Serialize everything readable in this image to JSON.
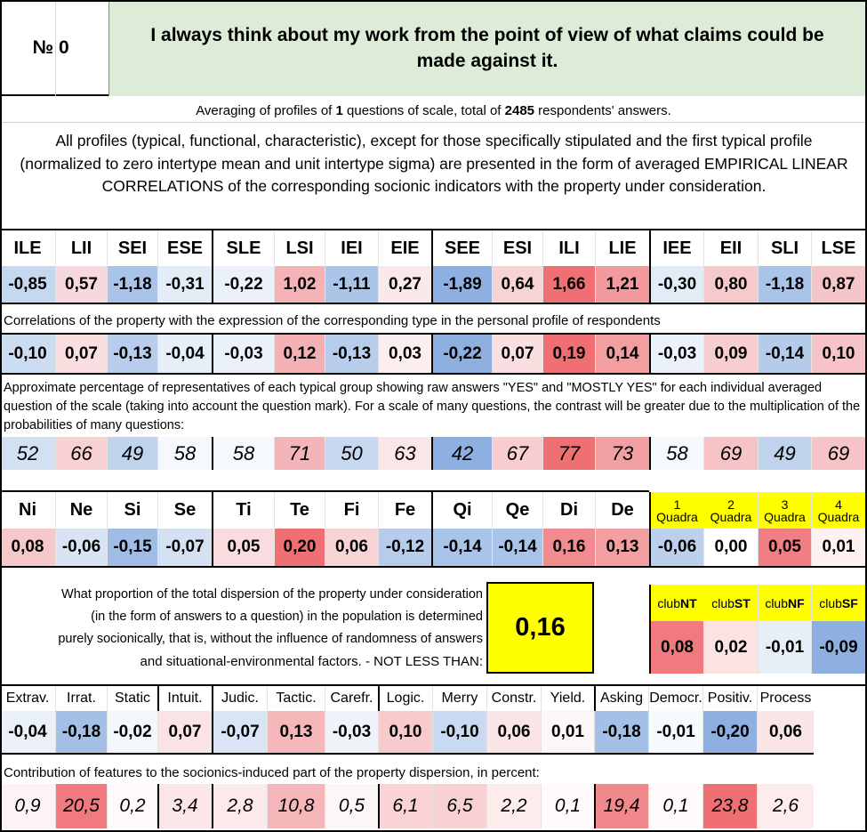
{
  "header": {
    "number_label": "№",
    "number": "0",
    "question": "I always think about my work from the point of view of what claims could be made against it."
  },
  "summary": {
    "pre": "Averaging of profiles of ",
    "questions_count": "1",
    "mid": " questions of scale, total of ",
    "respondents_count": "2485",
    "post": " respondents' answers."
  },
  "description": "All profiles (typical, functional, characteristic), except for those specifically stipulated and the first typical profile (normalized to zero intertype mean and unit intertype sigma) are presented in the form of averaged EMPIRICAL LINEAR CORRELATIONS of the corresponding socionic indicators with the property under consideration.",
  "types": {
    "labels": [
      "ILE",
      "LII",
      "SEI",
      "ESE",
      "SLE",
      "LSI",
      "IEI",
      "EIE",
      "SEE",
      "ESI",
      "ILI",
      "LIE",
      "IEE",
      "EII",
      "SLI",
      "LSE"
    ],
    "values": [
      "-0,85",
      "0,57",
      "-1,18",
      "-0,31",
      "-0,22",
      "1,02",
      "-1,11",
      "0,27",
      "-1,89",
      "0,64",
      "1,66",
      "1,21",
      "-0,30",
      "0,80",
      "-1,18",
      "0,87"
    ],
    "colors": [
      "#c6d8ef",
      "#f8d9db",
      "#a9c4e8",
      "#e4ecf7",
      "#ebf1f9",
      "#f4b3b6",
      "#aac5e8",
      "#fbe9ea",
      "#8eb0e0",
      "#f7d3d5",
      "#ef6f73",
      "#f29a9e",
      "#e3ebf7",
      "#f6c9cb",
      "#a9c4e8",
      "#f6c5c8"
    ]
  },
  "correlations": {
    "caption": "Correlations of the property with the expression of the corresponding type in the personal profile of respondents",
    "values": [
      "-0,10",
      "0,07",
      "-0,13",
      "-0,04",
      "-0,03",
      "0,12",
      "-0,13",
      "0,03",
      "-0,22",
      "0,07",
      "0,19",
      "0,14",
      "-0,03",
      "0,09",
      "-0,14",
      "0,10"
    ],
    "colors": [
      "#ccdcf1",
      "#f9dfe0",
      "#b7cdeb",
      "#e6eef8",
      "#ebf1f9",
      "#f4b1b4",
      "#b8cdeb",
      "#fcedee",
      "#8eb0e0",
      "#f9dfe0",
      "#ef6f73",
      "#f39fa2",
      "#ebf1f9",
      "#f7cdcf",
      "#b4cbea",
      "#f6c3c6"
    ]
  },
  "percentages": {
    "caption": "Approximate percentage of representatives of each typical group showing raw answers \"YES\" and \"MOSTLY YES\" for each individual averaged question of the scale (taking into account the question mark). For a scale of many questions, the contrast will be greater due to the multiplication of the probabilities of many questions:",
    "values": [
      "52",
      "66",
      "49",
      "58",
      "58",
      "71",
      "50",
      "63",
      "42",
      "67",
      "77",
      "73",
      "58",
      "69",
      "49",
      "69"
    ],
    "colors": [
      "#d2e0f2",
      "#f7d1d3",
      "#bfd3ed",
      "#f5f8fc",
      "#f5f8fc",
      "#f4b5b8",
      "#c6d8ef",
      "#fbe6e7",
      "#8eb0e0",
      "#f7cdcf",
      "#ef6f73",
      "#f29fa2",
      "#f5f8fc",
      "#f6c4c7",
      "#bfd3ed",
      "#f6c4c7"
    ]
  },
  "functions": {
    "labels": [
      "Ni",
      "Ne",
      "Si",
      "Se",
      "Ti",
      "Te",
      "Fi",
      "Fe",
      "Qi",
      "Qe",
      "Di",
      "De"
    ],
    "values": [
      "0,08",
      "-0,06",
      "-0,15",
      "-0,07",
      "0,05",
      "0,20",
      "0,06",
      "-0,12",
      "-0,14",
      "-0,14",
      "0,16",
      "0,13"
    ],
    "colors": [
      "#f6c8ca",
      "#d8e4f4",
      "#9fbde5",
      "#d3e1f3",
      "#f9dcdd",
      "#ef6f73",
      "#f8d4d6",
      "#b6ccea",
      "#a9c4e8",
      "#a9c4e8",
      "#f18b8f",
      "#f39ea1"
    ]
  },
  "quadras": {
    "labels": [
      [
        "1",
        "Quadra"
      ],
      [
        "2",
        "Quadra"
      ],
      [
        "3",
        "Quadra"
      ],
      [
        "4",
        "Quadra"
      ]
    ],
    "values": [
      "-0,06",
      "0,00",
      "0,05",
      "0,01"
    ],
    "colors": [
      "#bcd0ec",
      "#ffffff",
      "#f07e82",
      "#fdf1f1"
    ]
  },
  "dispersion": {
    "lines": [
      "What proportion of the total dispersion of the property under consideration",
      "(in the form of answers to a question) in the population is determined",
      "purely socionically, that is, without the influence of randomness of answers",
      "and situational-environmental factors. - NOT LESS THAN:"
    ],
    "value": "0,16",
    "value_color": "#ffff00"
  },
  "clubs": {
    "labels": [
      [
        "club",
        "NT"
      ],
      [
        "club",
        "ST"
      ],
      [
        "club",
        "NF"
      ],
      [
        "club",
        "SF"
      ]
    ],
    "values": [
      "0,08",
      "0,02",
      "-0,01",
      "-0,09"
    ],
    "colors": [
      "#f07a7e",
      "#fbe3e4",
      "#e6eef8",
      "#8eb0e0"
    ]
  },
  "features": {
    "labels": [
      "Extrav.",
      "Irrat.",
      "Static",
      "Intuit.",
      "Judic.",
      "Tactic.",
      "Carefr.",
      "Logic.",
      "Merry",
      "Constr.",
      "Yield.",
      "Asking",
      "Democr.",
      "Positiv.",
      "Process"
    ],
    "values": [
      "-0,04",
      "-0,18",
      "-0,02",
      "0,07",
      "-0,07",
      "0,13",
      "-0,03",
      "0,10",
      "-0,10",
      "0,06",
      "0,01",
      "-0,18",
      "-0,01",
      "-0,20",
      "0,06"
    ],
    "colors": [
      "#e9f0f8",
      "#a4c0e6",
      "#f3f7fc",
      "#fae3e4",
      "#d9e5f4",
      "#f5b7ba",
      "#eef3fa",
      "#f7cacc",
      "#c9daf0",
      "#fae5e6",
      "#fdf6f6",
      "#a4c0e6",
      "#f7fafd",
      "#8eb0e0",
      "#fae5e6"
    ]
  },
  "contribution": {
    "caption": "Contribution of features to the socionics-induced part of the property dispersion, in percent:",
    "values": [
      "0,9",
      "20,5",
      "0,2",
      "3,4",
      "2,8",
      "10,8",
      "0,5",
      "6,1",
      "6,5",
      "2,2",
      "0,1",
      "19,4",
      "0,1",
      "23,8",
      "2,6"
    ],
    "colors": [
      "#fdf3f4",
      "#f07a7e",
      "#fefafa",
      "#fbe5e6",
      "#fce9ea",
      "#f6b7ba",
      "#fdf6f6",
      "#f9d3d5",
      "#f9d1d3",
      "#fcecec",
      "#fffbfb",
      "#f1888c",
      "#fffbfb",
      "#ef6f73",
      "#fcecec"
    ]
  }
}
